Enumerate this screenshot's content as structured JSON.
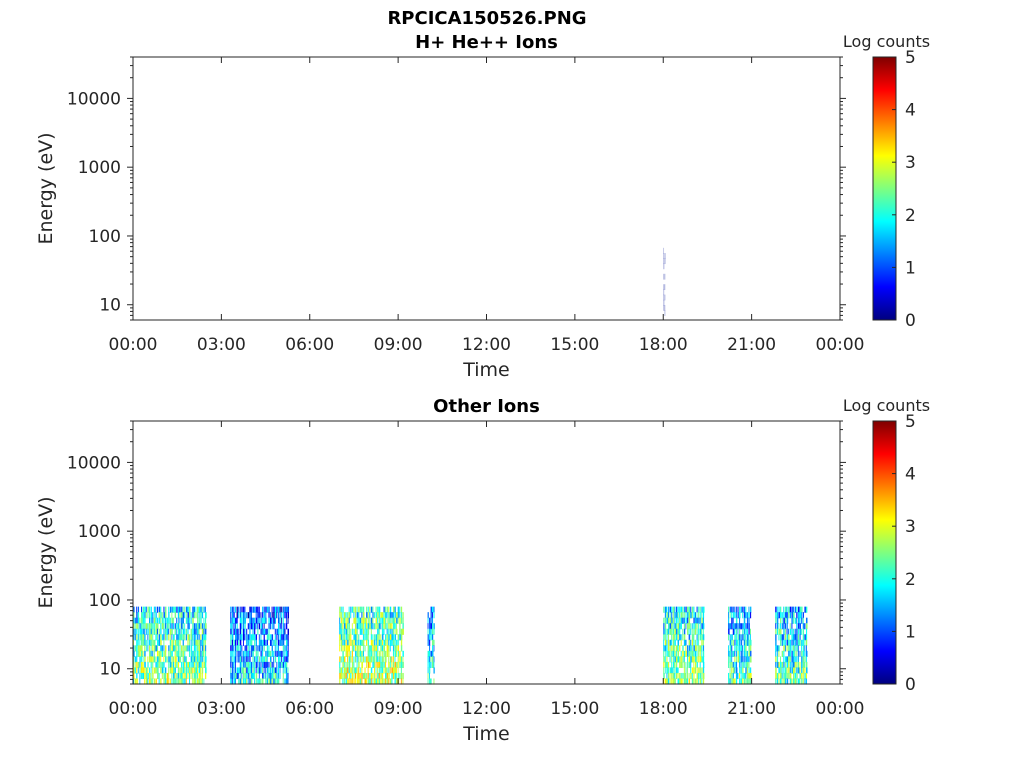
{
  "figure": {
    "title": "RPCICA150526.PNG"
  },
  "colors": {
    "axis": "#262626",
    "colormap": [
      "#00007f",
      "#0000ff",
      "#007fff",
      "#00ffff",
      "#7fff7f",
      "#ffff00",
      "#ff7f00",
      "#ff0000",
      "#7f0000"
    ]
  },
  "chart_data": [
    {
      "type": "heatmap",
      "title": "H+ He++ Ions",
      "xlabel": "Time",
      "ylabel": "Energy (eV)",
      "xticks": [
        "00:00",
        "03:00",
        "06:00",
        "09:00",
        "12:00",
        "15:00",
        "18:00",
        "21:00",
        "00:00"
      ],
      "xlim_hours": [
        0,
        24
      ],
      "yscale": "log",
      "ylim": [
        6,
        40000
      ],
      "yticks": [
        {
          "value": 10,
          "label": "10"
        },
        {
          "value": 100,
          "label": "100"
        },
        {
          "value": 1000,
          "label": "1000"
        },
        {
          "value": 10000,
          "label": "10000"
        }
      ],
      "colorbar": {
        "label": "Log counts",
        "min": 0,
        "max": 5,
        "ticks": [
          "0",
          "1",
          "2",
          "3",
          "4",
          "5"
        ]
      },
      "data_blocks": [
        {
          "t_start_h": 18.0,
          "t_end_h": 18.08,
          "e_min": 7,
          "e_max": 80,
          "level": 0.3
        }
      ]
    },
    {
      "type": "heatmap",
      "title": "Other Ions",
      "xlabel": "Time",
      "ylabel": "Energy (eV)",
      "xticks": [
        "00:00",
        "03:00",
        "06:00",
        "09:00",
        "12:00",
        "15:00",
        "18:00",
        "21:00",
        "00:00"
      ],
      "xlim_hours": [
        0,
        24
      ],
      "yscale": "log",
      "ylim": [
        6,
        40000
      ],
      "yticks": [
        {
          "value": 10,
          "label": "10"
        },
        {
          "value": 100,
          "label": "100"
        },
        {
          "value": 1000,
          "label": "1000"
        },
        {
          "value": 10000,
          "label": "10000"
        }
      ],
      "colorbar": {
        "label": "Log counts",
        "min": 0,
        "max": 5,
        "ticks": [
          "0",
          "1",
          "2",
          "3",
          "4",
          "5"
        ]
      },
      "data_blocks": [
        {
          "t_start_h": 0.0,
          "t_end_h": 2.5,
          "e_min": 6,
          "e_max": 80,
          "level": 2.1
        },
        {
          "t_start_h": 3.3,
          "t_end_h": 5.3,
          "e_min": 6,
          "e_max": 80,
          "level": 1.4
        },
        {
          "t_start_h": 7.0,
          "t_end_h": 9.2,
          "e_min": 6,
          "e_max": 80,
          "level": 2.4
        },
        {
          "t_start_h": 10.0,
          "t_end_h": 10.25,
          "e_min": 6,
          "e_max": 80,
          "level": 1.6
        },
        {
          "t_start_h": 18.0,
          "t_end_h": 19.4,
          "e_min": 6,
          "e_max": 80,
          "level": 2.1
        },
        {
          "t_start_h": 20.2,
          "t_end_h": 21.0,
          "e_min": 6,
          "e_max": 80,
          "level": 1.8
        },
        {
          "t_start_h": 21.8,
          "t_end_h": 22.9,
          "e_min": 6,
          "e_max": 80,
          "level": 1.9
        }
      ]
    }
  ]
}
